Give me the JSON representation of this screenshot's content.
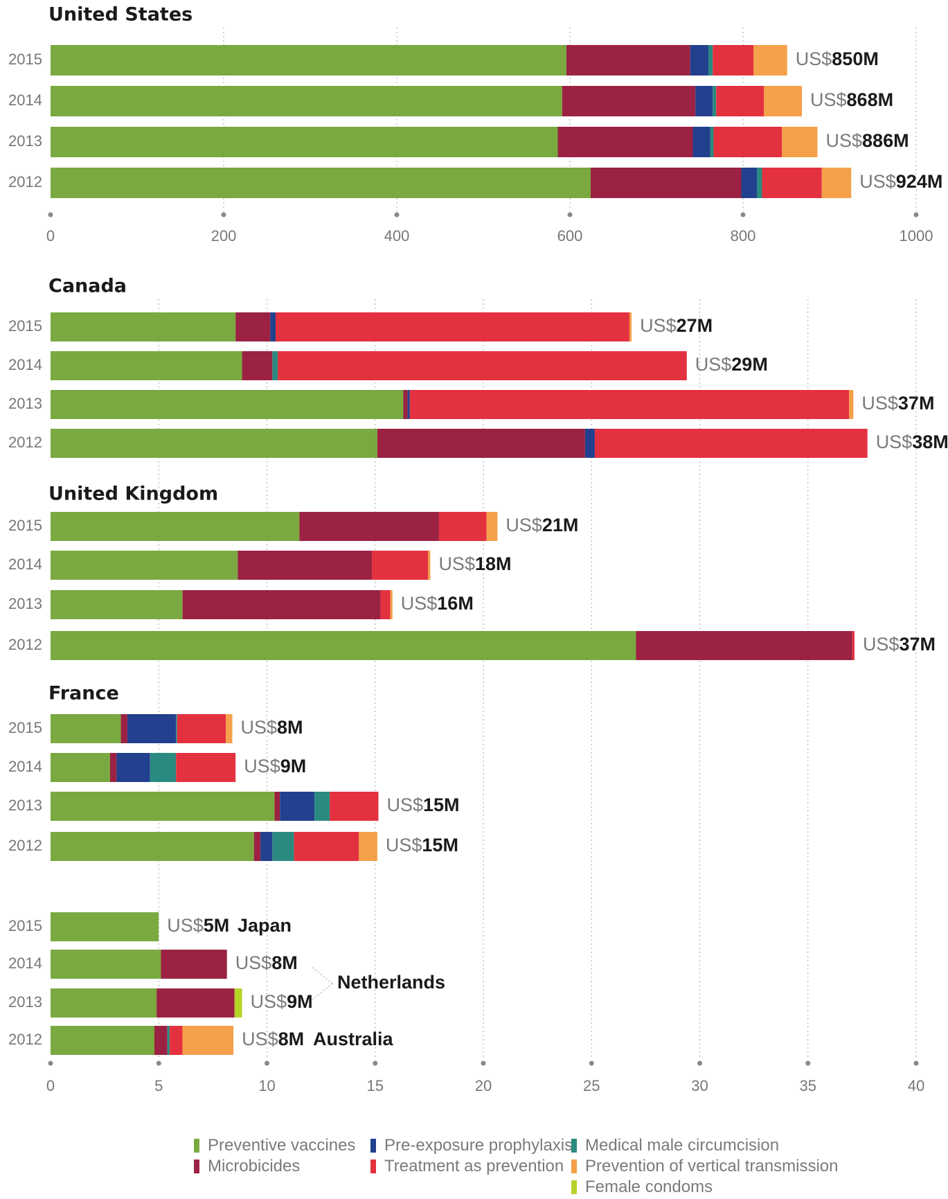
{
  "colors": {
    "preventive_vaccines": "#79a940",
    "microbicides": "#9b2242",
    "prep": "#23408e",
    "circumcision": "#2b8a80",
    "treatment_as_prevention": "#e3313f",
    "vertical_transmission": "#f5a04a",
    "female_condoms": "#b6d32a"
  },
  "legend": [
    {
      "key": "preventive_vaccines",
      "label": "Preventive vaccines"
    },
    {
      "key": "microbicides",
      "label": "Microbicides"
    },
    {
      "key": "prep",
      "label": "Pre-exposure prophylaxis"
    },
    {
      "key": "treatment_as_prevention",
      "label": "Treatment as prevention"
    },
    {
      "key": "circumcision",
      "label": "Medical male circumcision"
    },
    {
      "key": "vertical_transmission",
      "label": "Prevention of vertical transmission"
    },
    {
      "key": "female_condoms",
      "label": "Female condoms"
    }
  ],
  "chart_data": [
    {
      "type": "bar",
      "orientation": "horizontal",
      "stacked": true,
      "title": "United States",
      "xlim": [
        0,
        1000
      ],
      "xticks": [
        0,
        200,
        400,
        600,
        800,
        1000
      ],
      "grid": true,
      "bars": [
        {
          "year": "2015",
          "total_prefix": "US$",
          "total_value": "850M",
          "segments": {
            "preventive_vaccines": 596,
            "microbicides": 143,
            "prep": 21,
            "treatment_as_prevention": 47,
            "circumcision": 5,
            "vertical_transmission": 39,
            "female_condoms": 0
          }
        },
        {
          "year": "2014",
          "total_prefix": "US$",
          "total_value": "868M",
          "segments": {
            "preventive_vaccines": 591,
            "microbicides": 154,
            "prep": 20,
            "treatment_as_prevention": 55,
            "circumcision": 4,
            "vertical_transmission": 44,
            "female_condoms": 0
          }
        },
        {
          "year": "2013",
          "total_prefix": "US$",
          "total_value": "886M",
          "segments": {
            "preventive_vaccines": 586,
            "microbicides": 156,
            "prep": 20,
            "treatment_as_prevention": 79,
            "circumcision": 4,
            "vertical_transmission": 41,
            "female_condoms": 0
          }
        },
        {
          "year": "2012",
          "total_prefix": "US$",
          "total_value": "924M",
          "segments": {
            "preventive_vaccines": 624,
            "microbicides": 174,
            "prep": 18,
            "treatment_as_prevention": 69,
            "circumcision": 6,
            "vertical_transmission": 34,
            "female_condoms": 0
          }
        }
      ]
    },
    {
      "type": "bar",
      "orientation": "horizontal",
      "stacked": true,
      "title": "Canada",
      "xlim": [
        0,
        40
      ],
      "grid": true,
      "bars": [
        {
          "year": "2015",
          "total_prefix": "US$",
          "total_value": "27M",
          "segments": {
            "preventive_vaccines": 8.55,
            "microbicides": 1.6,
            "prep": 0.25,
            "treatment_as_prevention": 16.35,
            "circumcision": 0,
            "vertical_transmission": 0.1,
            "female_condoms": 0
          }
        },
        {
          "year": "2014",
          "total_prefix": "US$",
          "total_value": "29M",
          "segments": {
            "preventive_vaccines": 8.85,
            "microbicides": 1.4,
            "prep": 0,
            "treatment_as_prevention": 18.9,
            "circumcision": 0.25,
            "vertical_transmission": 0,
            "female_condoms": 0
          }
        },
        {
          "year": "2013",
          "total_prefix": "US$",
          "total_value": "37M",
          "segments": {
            "preventive_vaccines": 16.3,
            "microbicides": 0.2,
            "prep": 0.1,
            "treatment_as_prevention": 20.3,
            "circumcision": 0,
            "vertical_transmission": 0.2,
            "female_condoms": 0
          }
        },
        {
          "year": "2012",
          "total_prefix": "US$",
          "total_value": "38M",
          "segments": {
            "preventive_vaccines": 15.1,
            "microbicides": 9.6,
            "prep": 0.45,
            "treatment_as_prevention": 12.6,
            "circumcision": 0,
            "vertical_transmission": 0,
            "female_condoms": 0
          }
        }
      ]
    },
    {
      "type": "bar",
      "orientation": "horizontal",
      "stacked": true,
      "title": "United Kingdom",
      "xlim": [
        0,
        40
      ],
      "grid": true,
      "bars": [
        {
          "year": "2015",
          "total_prefix": "US$",
          "total_value": "21M",
          "segments": {
            "preventive_vaccines": 11.5,
            "microbicides": 6.45,
            "prep": 0,
            "treatment_as_prevention": 2.2,
            "circumcision": 0,
            "vertical_transmission": 0.5,
            "female_condoms": 0
          }
        },
        {
          "year": "2014",
          "total_prefix": "US$",
          "total_value": "18M",
          "segments": {
            "preventive_vaccines": 8.65,
            "microbicides": 6.2,
            "prep": 0,
            "treatment_as_prevention": 2.6,
            "circumcision": 0,
            "vertical_transmission": 0.1,
            "female_condoms": 0
          }
        },
        {
          "year": "2013",
          "total_prefix": "US$",
          "total_value": "16M",
          "segments": {
            "preventive_vaccines": 6.1,
            "microbicides": 9.15,
            "prep": 0,
            "treatment_as_prevention": 0.45,
            "circumcision": 0,
            "vertical_transmission": 0.1,
            "female_condoms": 0
          }
        },
        {
          "year": "2012",
          "total_prefix": "US$",
          "total_value": "37M",
          "segments": {
            "preventive_vaccines": 27.05,
            "microbicides": 10.0,
            "prep": 0,
            "treatment_as_prevention": 0.1,
            "circumcision": 0,
            "vertical_transmission": 0,
            "female_condoms": 0
          }
        }
      ]
    },
    {
      "type": "bar",
      "orientation": "horizontal",
      "stacked": true,
      "title": "France",
      "xlim": [
        0,
        40
      ],
      "grid": true,
      "bars": [
        {
          "year": "2015",
          "total_prefix": "US$",
          "total_value": "8M",
          "segments": {
            "preventive_vaccines": 3.25,
            "microbicides": 0.3,
            "prep": 2.25,
            "treatment_as_prevention": 2.25,
            "circumcision": 0.05,
            "vertical_transmission": 0.3,
            "female_condoms": 0
          }
        },
        {
          "year": "2014",
          "total_prefix": "US$",
          "total_value": "9M",
          "segments": {
            "preventive_vaccines": 2.75,
            "microbicides": 0.3,
            "prep": 1.55,
            "treatment_as_prevention": 2.75,
            "circumcision": 1.2,
            "vertical_transmission": 0,
            "female_condoms": 0
          }
        },
        {
          "year": "2013",
          "total_prefix": "US$",
          "total_value": "15M",
          "segments": {
            "preventive_vaccines": 10.35,
            "microbicides": 0.25,
            "prep": 1.6,
            "treatment_as_prevention": 2.25,
            "circumcision": 0.7,
            "vertical_transmission": 0,
            "female_condoms": 0
          }
        },
        {
          "year": "2012",
          "total_prefix": "US$",
          "total_value": "15M",
          "segments": {
            "preventive_vaccines": 9.4,
            "microbicides": 0.3,
            "prep": 0.55,
            "treatment_as_prevention": 3.0,
            "circumcision": 1.0,
            "vertical_transmission": 0.85,
            "female_condoms": 0
          }
        }
      ]
    },
    {
      "type": "bar",
      "orientation": "horizontal",
      "stacked": true,
      "title": "",
      "xlim": [
        0,
        40
      ],
      "xticks": [
        0,
        5,
        10,
        15,
        20,
        25,
        30,
        35,
        40
      ],
      "grid": true,
      "annotations": [
        "Japan",
        "Netherlands",
        "Australia"
      ],
      "bars": [
        {
          "year": "2015",
          "country": "Japan",
          "total_prefix": "US$",
          "total_value": "5M",
          "segments": {
            "preventive_vaccines": 5.0,
            "microbicides": 0,
            "prep": 0,
            "treatment_as_prevention": 0,
            "circumcision": 0,
            "vertical_transmission": 0,
            "female_condoms": 0
          }
        },
        {
          "year": "2014",
          "country": "Netherlands",
          "total_prefix": "US$",
          "total_value": "8M",
          "segments": {
            "preventive_vaccines": 5.1,
            "microbicides": 3.05,
            "prep": 0,
            "treatment_as_prevention": 0,
            "circumcision": 0,
            "vertical_transmission": 0,
            "female_condoms": 0
          }
        },
        {
          "year": "2013",
          "country": "Netherlands",
          "total_prefix": "US$",
          "total_value": "9M",
          "segments": {
            "preventive_vaccines": 4.9,
            "microbicides": 3.6,
            "prep": 0,
            "treatment_as_prevention": 0,
            "circumcision": 0,
            "vertical_transmission": 0,
            "female_condoms": 0.35
          }
        },
        {
          "year": "2012",
          "country": "Australia",
          "total_prefix": "US$",
          "total_value": "8M",
          "segments": {
            "preventive_vaccines": 4.8,
            "microbicides": 0.6,
            "prep": 0,
            "treatment_as_prevention": 0.6,
            "circumcision": 0.1,
            "vertical_transmission": 2.35,
            "female_condoms": 0
          }
        }
      ]
    }
  ]
}
